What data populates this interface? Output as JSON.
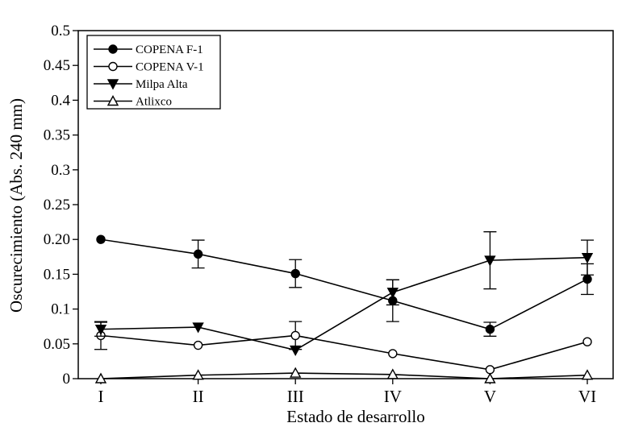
{
  "chart_data": {
    "type": "line",
    "xlabel": "Estado de desarrollo",
    "ylabel": "Oscurecimiento (Abs. 240 mm)",
    "categories": [
      "I",
      "II",
      "III",
      "IV",
      "V",
      "VI"
    ],
    "ylim": [
      0,
      0.5
    ],
    "yticks": [
      {
        "value": 0,
        "label": "0"
      },
      {
        "value": 0.05,
        "label": "0.05"
      },
      {
        "value": 0.1,
        "label": "0.1"
      },
      {
        "value": 0.15,
        "label": "0.15"
      },
      {
        "value": 0.2,
        "label": "0.20"
      },
      {
        "value": 0.25,
        "label": "0.25"
      },
      {
        "value": 0.3,
        "label": "0.3"
      },
      {
        "value": 0.35,
        "label": "0.35"
      },
      {
        "value": 0.4,
        "label": "0.4"
      },
      {
        "value": 0.45,
        "label": "0.45"
      },
      {
        "value": 0.5,
        "label": "0.5"
      }
    ],
    "grid": false,
    "legend_position": "top-left",
    "series": [
      {
        "name": "COPENA F-1",
        "marker": "circle-filled",
        "values": [
          0.2,
          0.179,
          0.151,
          0.112,
          0.071,
          0.143
        ],
        "errors": [
          0.0,
          0.02,
          0.02,
          0.03,
          0.01,
          0.022
        ]
      },
      {
        "name": "COPENA V-1",
        "marker": "circle-open",
        "values": [
          0.062,
          0.048,
          0.062,
          0.036,
          0.013,
          0.053
        ],
        "errors": [
          0.02,
          0.0,
          0.02,
          0.0,
          0.0,
          0.0
        ]
      },
      {
        "name": "Milpa Alta",
        "marker": "triangle-down-filled",
        "values": [
          0.071,
          0.074,
          0.041,
          0.124,
          0.17,
          0.174
        ],
        "errors": [
          0.01,
          0.0,
          0.0,
          0.018,
          0.041,
          0.025
        ]
      },
      {
        "name": "Atlixco",
        "marker": "triangle-up-open",
        "values": [
          0.0,
          0.005,
          0.008,
          0.006,
          0.0,
          0.005
        ],
        "errors": [
          0,
          0,
          0,
          0,
          0,
          0
        ]
      }
    ]
  }
}
